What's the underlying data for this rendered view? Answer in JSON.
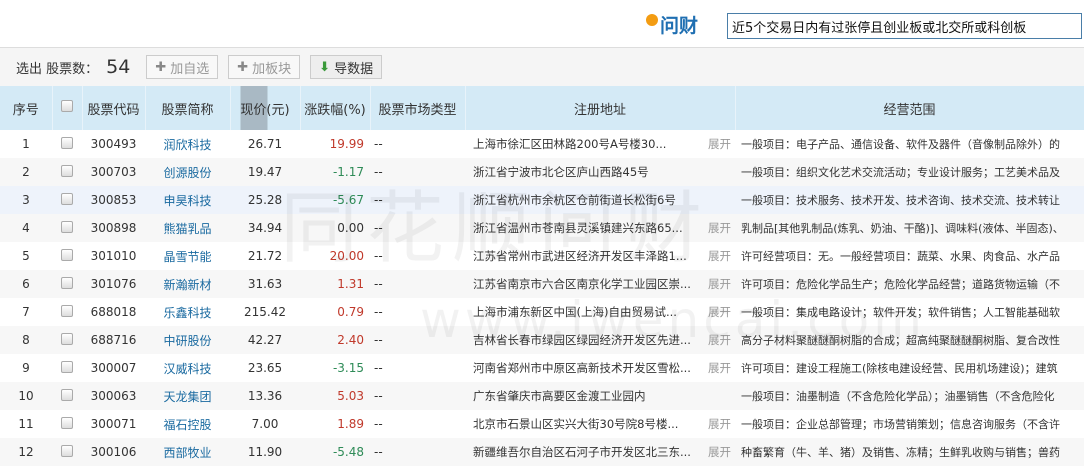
{
  "header": {
    "logo": "问财",
    "query": "近5个交易日内有过张停且创业板或北交所或科创板"
  },
  "toolbar": {
    "label": "选出 股票数：",
    "count": "54",
    "add_watch": "加自选",
    "add_block": "加板块",
    "export": "导数据"
  },
  "columns": [
    "序号",
    "股票代码",
    "股票简称",
    "现价(元)",
    "涨跌幅(%)",
    "股票市场类型",
    "注册地址",
    "经营范围"
  ],
  "expand_label": "展开",
  "colors": {
    "up": "#c0392b",
    "down": "#2e8b57",
    "header_bg": "#d4eaf6",
    "link": "#1a6aa0"
  },
  "rows": [
    {
      "no": "1",
      "code": "300493",
      "name": "润欣科技",
      "price": "26.71",
      "change": "19.99",
      "market": "--",
      "address": "上海市徐汇区田林路200号A号楼30...",
      "expand": true,
      "scope": "一般项目：电子产品、通信设备、软件及器件（音像制品除外）的"
    },
    {
      "no": "2",
      "code": "300703",
      "name": "创源股份",
      "price": "19.47",
      "change": "-1.17",
      "market": "--",
      "address": "浙江省宁波市北仑区庐山西路45号",
      "expand": false,
      "scope": "一般项目：组织文化艺术交流活动；专业设计服务；工艺美术品及"
    },
    {
      "no": "3",
      "code": "300853",
      "name": "申昊科技",
      "price": "25.28",
      "change": "-5.67",
      "market": "--",
      "address": "浙江省杭州市余杭区仓前街道长松街6号",
      "expand": false,
      "scope": "一般项目：技术服务、技术开发、技术咨询、技术交流、技术转让"
    },
    {
      "no": "4",
      "code": "300898",
      "name": "熊猫乳品",
      "price": "34.94",
      "change": "0.00",
      "market": "--",
      "address": "浙江省温州市苍南县灵溪镇建兴东路65...",
      "expand": true,
      "scope": "乳制品[其他乳制品(炼乳、奶油、干酪)]、调味料(液体、半固态)、"
    },
    {
      "no": "5",
      "code": "301010",
      "name": "晶雪节能",
      "price": "21.72",
      "change": "20.00",
      "market": "--",
      "address": "江苏省常州市武进区经济开发区丰泽路1...",
      "expand": true,
      "scope": "许可经营项目：无。一般经营项目：蔬菜、水果、肉食品、水产品"
    },
    {
      "no": "6",
      "code": "301076",
      "name": "新瀚新材",
      "price": "31.63",
      "change": "1.31",
      "market": "--",
      "address": "江苏省南京市六合区南京化学工业园区崇...",
      "expand": true,
      "scope": "许可项目：危险化学品生产；危险化学品经营；道路货物运输（不"
    },
    {
      "no": "7",
      "code": "688018",
      "name": "乐鑫科技",
      "price": "215.42",
      "change": "0.79",
      "market": "--",
      "address": "上海市浦东新区中国(上海)自由贸易试...",
      "expand": true,
      "scope": "一般项目：集成电路设计；软件开发；软件销售；人工智能基础软"
    },
    {
      "no": "8",
      "code": "688716",
      "name": "中研股份",
      "price": "42.27",
      "change": "2.40",
      "market": "--",
      "address": "吉林省长春市绿园区绿园经济开发区先进...",
      "expand": true,
      "scope": "高分子材料聚醚醚酮树脂的合成；超高纯聚醚醚酮树脂、复合改性"
    },
    {
      "no": "9",
      "code": "300007",
      "name": "汉威科技",
      "price": "23.65",
      "change": "-3.15",
      "market": "--",
      "address": "河南省郑州市中原区高新技术开发区雪松...",
      "expand": true,
      "scope": "许可项目：建设工程施工(除核电建设经营、民用机场建设)；建筑"
    },
    {
      "no": "10",
      "code": "300063",
      "name": "天龙集团",
      "price": "13.36",
      "change": "5.03",
      "market": "--",
      "address": "广东省肇庆市高要区金渡工业园内",
      "expand": false,
      "scope": "一般项目：油墨制造（不含危险化学品）；油墨销售（不含危险化"
    },
    {
      "no": "11",
      "code": "300071",
      "name": "福石控股",
      "price": "7.00",
      "change": "1.89",
      "market": "--",
      "address": "北京市石景山区实兴大街30号院8号楼...",
      "expand": true,
      "scope": "一般项目：企业总部管理；市场营销策划；信息咨询服务（不含许"
    },
    {
      "no": "12",
      "code": "300106",
      "name": "西部牧业",
      "price": "11.90",
      "change": "-5.48",
      "market": "--",
      "address": "新疆维吾尔自治区石河子市开发区北三东...",
      "expand": true,
      "scope": "种畜繁育（牛、羊、猪）及销售、冻精；生鲜乳收购与销售；兽药"
    }
  ],
  "watermark": [
    "同花顺问财",
    "www.iwencai.com"
  ]
}
